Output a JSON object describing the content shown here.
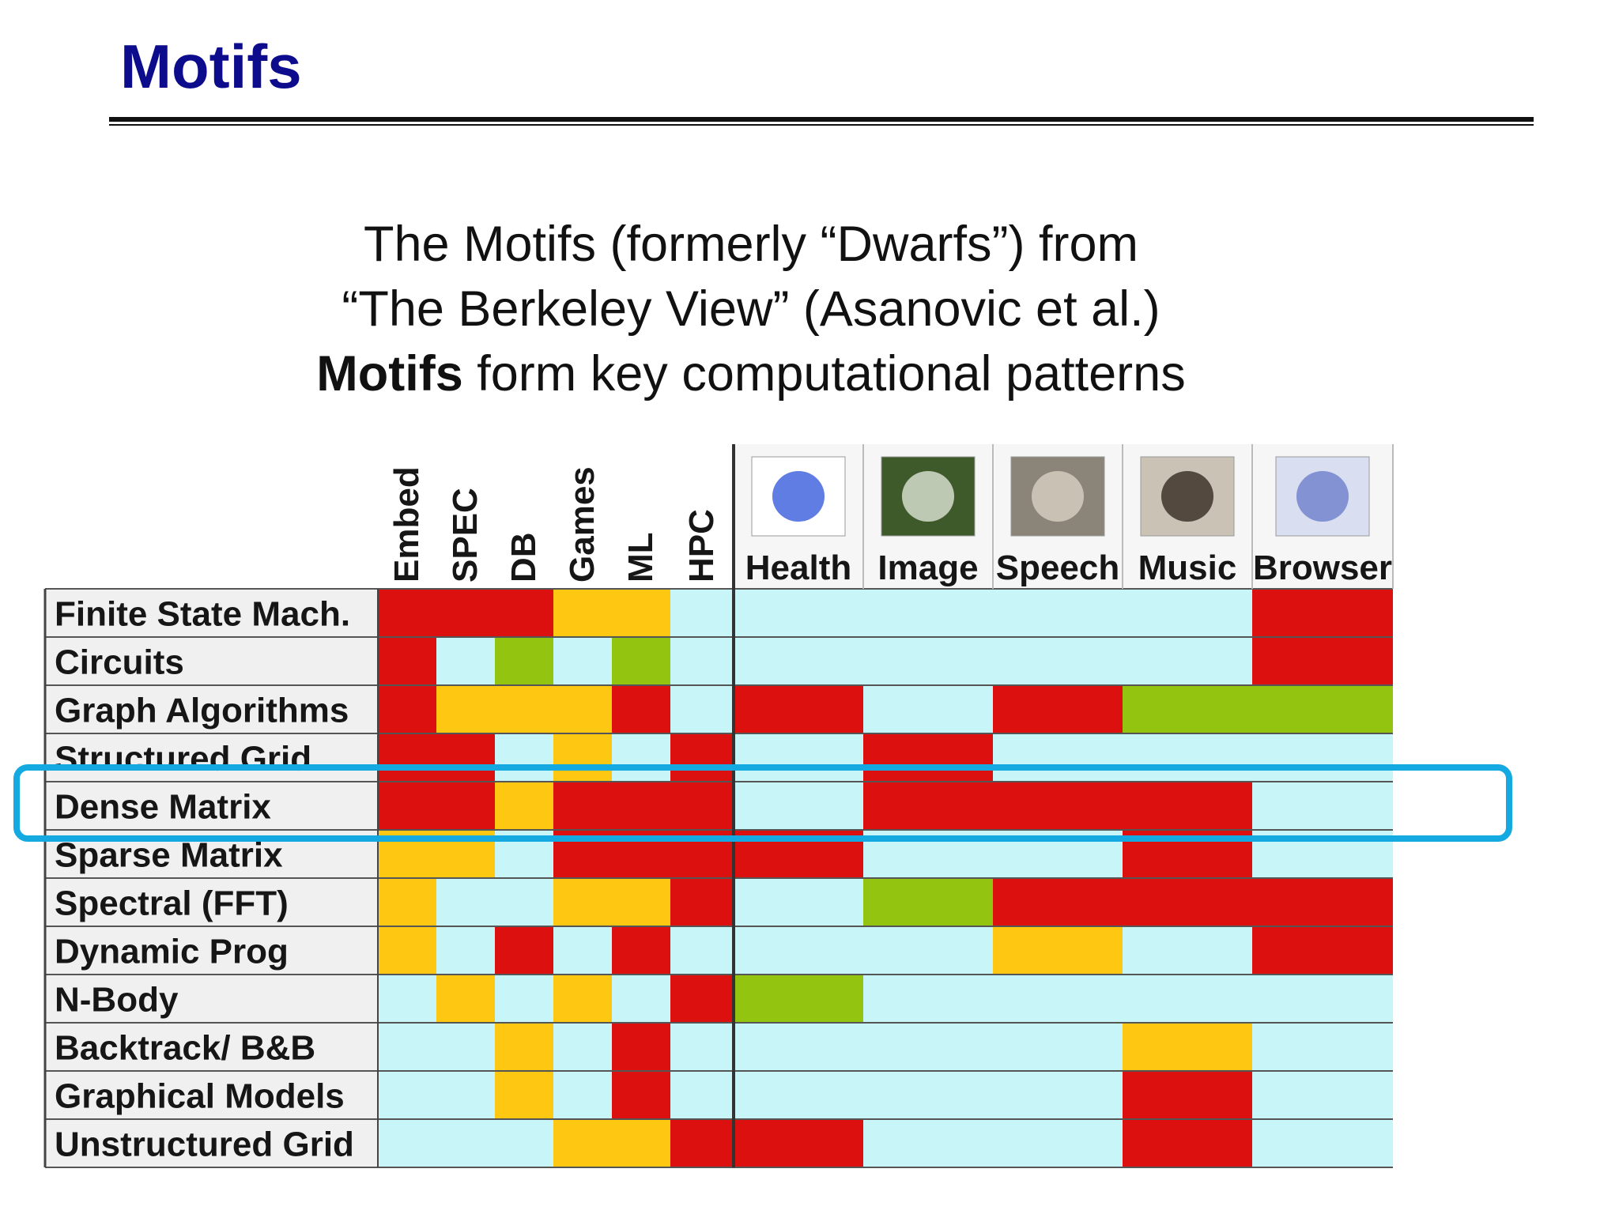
{
  "slide": {
    "title": "Motifs",
    "subtitle_lines": [
      "The Motifs (formerly “Dwarfs”) from",
      "“The Berkeley View” (Asanovic et al.)"
    ],
    "subtitle_bold": "Motifs",
    "subtitle_rest": " form key computational patterns"
  },
  "colors": {
    "red": "#dd1010",
    "yellow": "#fec812",
    "green": "#92c410",
    "light_blue": "#c8f6f8",
    "row_label_bg": "#f0f0f0",
    "highlight": "#14a9e0",
    "title": "#0c0c8c"
  },
  "highlighted_row": "Dense Matrix",
  "chart_data": {
    "type": "heatmap",
    "title": "",
    "x_benchmarks": [
      "Embed",
      "SPEC",
      "DB",
      "Games",
      "ML",
      "HPC"
    ],
    "x_applications": [
      "Health",
      "Image",
      "Speech",
      "Music",
      "Browser"
    ],
    "x": [
      "Embed",
      "SPEC",
      "DB",
      "Games",
      "ML",
      "HPC",
      "Health",
      "Image",
      "Speech",
      "Music",
      "Browser"
    ],
    "y": [
      "Finite State Mach.",
      "Circuits",
      "Graph Algorithms",
      "Structured Grid",
      "Dense Matrix",
      "Sparse Matrix",
      "Spectral (FFT)",
      "Dynamic Prog",
      "N-Body",
      "Backtrack/ B&B",
      "Graphical Models",
      "Unstructured Grid"
    ],
    "legend": {
      "R": "red",
      "Y": "yellow",
      "G": "green",
      "B": "light blue"
    },
    "values": [
      [
        "R",
        "R",
        "R",
        "Y",
        "Y",
        "B",
        "B",
        "B",
        "B",
        "B",
        "R"
      ],
      [
        "R",
        "B",
        "G",
        "B",
        "G",
        "B",
        "B",
        "B",
        "B",
        "B",
        "R"
      ],
      [
        "R",
        "Y",
        "Y",
        "Y",
        "R",
        "B",
        "R",
        "B",
        "R",
        "G",
        "G"
      ],
      [
        "R",
        "R",
        "B",
        "Y",
        "B",
        "R",
        "B",
        "R",
        "B",
        "B",
        "B"
      ],
      [
        "R",
        "R",
        "Y",
        "R",
        "R",
        "R",
        "B",
        "R",
        "R",
        "R",
        "B"
      ],
      [
        "Y",
        "Y",
        "B",
        "R",
        "R",
        "R",
        "R",
        "B",
        "B",
        "R",
        "B"
      ],
      [
        "Y",
        "B",
        "B",
        "Y",
        "Y",
        "R",
        "B",
        "G",
        "R",
        "R",
        "R"
      ],
      [
        "Y",
        "B",
        "R",
        "B",
        "R",
        "B",
        "B",
        "B",
        "Y",
        "B",
        "R"
      ],
      [
        "B",
        "Y",
        "B",
        "Y",
        "B",
        "R",
        "G",
        "B",
        "B",
        "B",
        "B"
      ],
      [
        "B",
        "B",
        "Y",
        "B",
        "R",
        "B",
        "B",
        "B",
        "B",
        "Y",
        "B"
      ],
      [
        "B",
        "B",
        "Y",
        "B",
        "R",
        "B",
        "B",
        "B",
        "B",
        "R",
        "B"
      ],
      [
        "B",
        "B",
        "B",
        "Y",
        "Y",
        "R",
        "R",
        "B",
        "B",
        "R",
        "B"
      ]
    ]
  }
}
